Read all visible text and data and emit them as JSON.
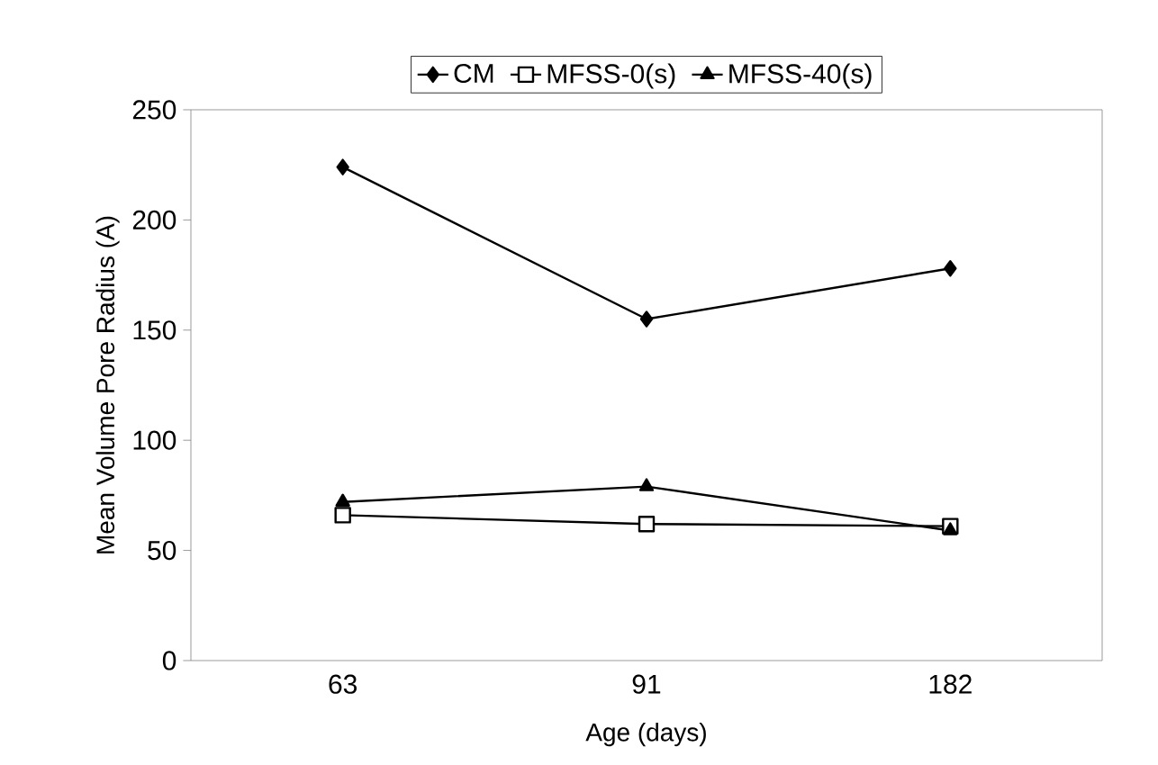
{
  "chart_data": {
    "type": "line",
    "xlabel": "Age (days)",
    "ylabel": "Mean Volume Pore Radius (A)",
    "categories": [
      "63",
      "91",
      "182"
    ],
    "series": [
      {
        "name": "CM",
        "color": "#000000",
        "marker": "diamond",
        "values": [
          224,
          155,
          178
        ]
      },
      {
        "name": "MFSS-0(s)",
        "color": "#000000",
        "marker": "square",
        "values": [
          66,
          62,
          61
        ]
      },
      {
        "name": "MFSS-40(s)",
        "color": "#000000",
        "marker": "triangle",
        "values": [
          72,
          79,
          59
        ]
      }
    ],
    "ylim": [
      0,
      250
    ],
    "yticks": [
      0,
      50,
      100,
      150,
      200,
      250
    ],
    "grid": false,
    "legend": "top",
    "line_style": "solid"
  }
}
